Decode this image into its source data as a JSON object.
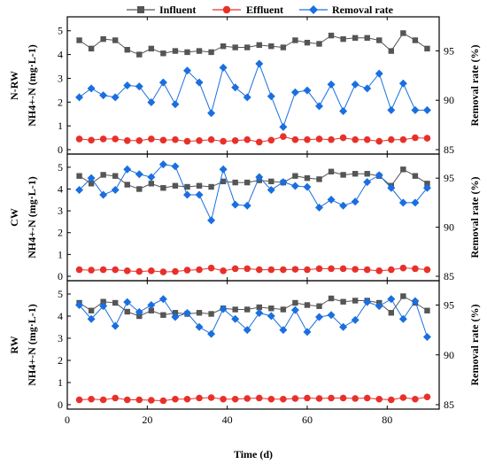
{
  "legend": {
    "items": [
      {
        "key": "influent",
        "label": "Influent"
      },
      {
        "key": "effluent",
        "label": "Effluent"
      },
      {
        "key": "removal",
        "label": "Removal rate"
      }
    ]
  },
  "colors": {
    "influent": "#555555",
    "effluent": "#e8302a",
    "removal": "#1a6fe0"
  },
  "xaxis": {
    "label": "Time (d)",
    "ticks": [
      "0",
      "20",
      "40",
      "60",
      "80"
    ],
    "lim": [
      0,
      93
    ]
  },
  "chart_data": [
    {
      "type": "line",
      "panel": "N-RW",
      "ylabel_left_prefix": "N-RW",
      "ylabel_left": "NH4+-N (mg·L-1)",
      "ylabel_right": "Removal rate (%)",
      "ylim_left": [
        0,
        5.4
      ],
      "yticks_left": [
        "0",
        "1",
        "2",
        "3",
        "4",
        "5"
      ],
      "ylim_right": [
        85,
        98
      ],
      "yticks_right": [
        "85",
        "90",
        "95"
      ],
      "x": [
        3,
        6,
        9,
        12,
        15,
        18,
        21,
        24,
        27,
        30,
        33,
        36,
        39,
        42,
        45,
        48,
        51,
        54,
        57,
        60,
        63,
        66,
        69,
        72,
        75,
        78,
        81,
        84,
        87,
        90
      ],
      "series": [
        {
          "name": "Influent",
          "axis": "left",
          "values": [
            4.6,
            4.25,
            4.65,
            4.6,
            4.2,
            4.0,
            4.25,
            4.05,
            4.15,
            4.1,
            4.15,
            4.1,
            4.35,
            4.3,
            4.3,
            4.4,
            4.35,
            4.3,
            4.6,
            4.5,
            4.45,
            4.8,
            4.65,
            4.7,
            4.7,
            4.6,
            4.15,
            4.9,
            4.6,
            4.25
          ]
        },
        {
          "name": "Effluent",
          "axis": "left",
          "values": [
            0.45,
            0.4,
            0.45,
            0.45,
            0.38,
            0.38,
            0.45,
            0.4,
            0.42,
            0.35,
            0.38,
            0.42,
            0.35,
            0.38,
            0.42,
            0.32,
            0.4,
            0.55,
            0.42,
            0.42,
            0.45,
            0.42,
            0.5,
            0.42,
            0.42,
            0.35,
            0.42,
            0.42,
            0.5,
            0.48
          ]
        },
        {
          "name": "Removal rate",
          "axis": "right",
          "values": [
            90.3,
            91.2,
            90.5,
            90.3,
            91.5,
            91.4,
            89.8,
            91.8,
            89.6,
            93.0,
            91.8,
            88.7,
            93.3,
            91.3,
            90.3,
            93.7,
            90.4,
            87.3,
            90.8,
            91.0,
            89.4,
            91.6,
            88.9,
            91.6,
            91.2,
            92.7,
            89.0,
            91.7,
            89.0,
            89.0
          ]
        }
      ]
    },
    {
      "type": "line",
      "panel": "CW",
      "ylabel_left_prefix": "CW",
      "ylabel_left": "NH4+-N (mg·L-1)",
      "ylabel_right": "Removal rate (%)",
      "ylim_left": [
        0,
        5.4
      ],
      "yticks_left": [
        "0",
        "1",
        "2",
        "3",
        "4",
        "5"
      ],
      "ylim_right": [
        85,
        97
      ],
      "yticks_right": [
        "85",
        "90",
        "95"
      ],
      "x": [
        3,
        6,
        9,
        12,
        15,
        18,
        21,
        24,
        27,
        30,
        33,
        36,
        39,
        42,
        45,
        48,
        51,
        54,
        57,
        60,
        63,
        66,
        69,
        72,
        75,
        78,
        81,
        84,
        87,
        90
      ],
      "series": [
        {
          "name": "Influent",
          "axis": "left",
          "values": [
            4.6,
            4.25,
            4.65,
            4.6,
            4.2,
            4.0,
            4.25,
            4.05,
            4.15,
            4.1,
            4.15,
            4.1,
            4.35,
            4.3,
            4.3,
            4.4,
            4.35,
            4.3,
            4.6,
            4.5,
            4.45,
            4.8,
            4.65,
            4.7,
            4.7,
            4.6,
            4.15,
            4.9,
            4.6,
            4.25
          ]
        },
        {
          "name": "Effluent",
          "axis": "left",
          "values": [
            0.3,
            0.28,
            0.3,
            0.3,
            0.25,
            0.22,
            0.25,
            0.2,
            0.22,
            0.28,
            0.3,
            0.38,
            0.25,
            0.35,
            0.35,
            0.3,
            0.3,
            0.3,
            0.32,
            0.3,
            0.35,
            0.35,
            0.35,
            0.32,
            0.3,
            0.25,
            0.3,
            0.38,
            0.35,
            0.3
          ]
        },
        {
          "name": "Removal rate",
          "axis": "right",
          "values": [
            93.8,
            95.0,
            93.3,
            93.8,
            95.9,
            95.4,
            95.1,
            96.4,
            96.2,
            93.3,
            93.3,
            90.7,
            95.9,
            92.3,
            92.2,
            95.1,
            93.8,
            94.6,
            94.2,
            94.1,
            92.0,
            92.8,
            92.2,
            92.6,
            94.6,
            95.3,
            94.0,
            92.5,
            92.5,
            94.0
          ]
        }
      ]
    },
    {
      "type": "line",
      "panel": "RW",
      "ylabel_left_prefix": "RW",
      "ylabel_left": "NH4+-N (mg·L-1)",
      "ylabel_right": "Removal rate (%)",
      "ylim_left": [
        0,
        5.4
      ],
      "yticks_left": [
        "0",
        "1",
        "2",
        "3",
        "4",
        "5"
      ],
      "ylim_right": [
        85,
        97
      ],
      "yticks_right": [
        "85",
        "90",
        "95"
      ],
      "x": [
        3,
        6,
        9,
        12,
        15,
        18,
        21,
        24,
        27,
        30,
        33,
        36,
        39,
        42,
        45,
        48,
        51,
        54,
        57,
        60,
        63,
        66,
        69,
        72,
        75,
        78,
        81,
        84,
        87,
        90
      ],
      "series": [
        {
          "name": "Influent",
          "axis": "left",
          "values": [
            4.6,
            4.25,
            4.65,
            4.6,
            4.2,
            4.0,
            4.25,
            4.05,
            4.15,
            4.1,
            4.15,
            4.1,
            4.35,
            4.3,
            4.3,
            4.4,
            4.35,
            4.3,
            4.6,
            4.5,
            4.45,
            4.8,
            4.65,
            4.7,
            4.7,
            4.6,
            4.15,
            4.9,
            4.6,
            4.25
          ]
        },
        {
          "name": "Effluent",
          "axis": "left",
          "values": [
            0.22,
            0.25,
            0.22,
            0.3,
            0.22,
            0.22,
            0.2,
            0.18,
            0.25,
            0.25,
            0.3,
            0.32,
            0.25,
            0.25,
            0.28,
            0.3,
            0.25,
            0.25,
            0.28,
            0.3,
            0.28,
            0.3,
            0.3,
            0.28,
            0.3,
            0.25,
            0.22,
            0.32,
            0.25,
            0.35
          ]
        },
        {
          "name": "Removal rate",
          "axis": "right",
          "values": [
            95.0,
            93.6,
            94.9,
            92.9,
            95.3,
            94.3,
            95.0,
            95.6,
            93.8,
            94.2,
            92.8,
            92.1,
            94.6,
            93.6,
            92.5,
            94.2,
            93.9,
            92.5,
            94.5,
            92.3,
            93.8,
            94.0,
            92.8,
            93.5,
            95.3,
            94.9,
            95.6,
            93.6,
            95.4,
            91.8
          ]
        }
      ]
    }
  ]
}
